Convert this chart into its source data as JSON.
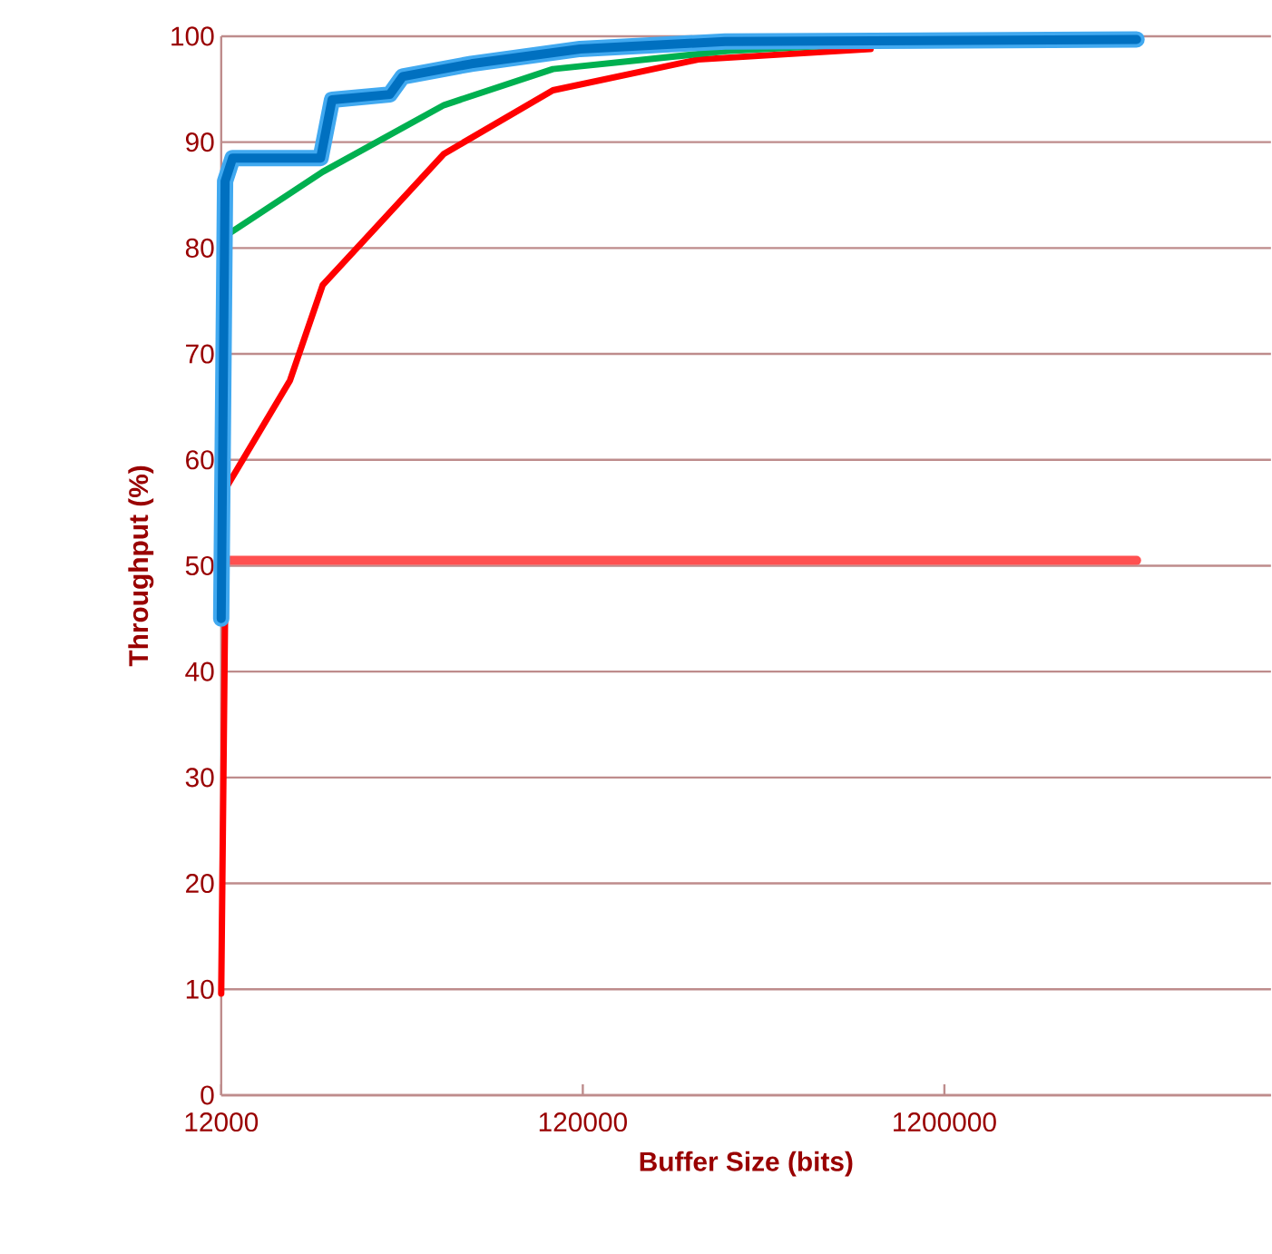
{
  "chart_data": {
    "type": "line",
    "xlabel": "Buffer Size (bits)",
    "ylabel": "Throughput (%)",
    "log": "x",
    "grid": "y",
    "marker": "none",
    "line_style": "solid",
    "xlim": [
      12000,
      9600000
    ],
    "xticks": [
      12000,
      120000,
      1200000
    ],
    "ylim": [
      0,
      100
    ],
    "yticks": [
      0,
      10,
      20,
      30,
      40,
      50,
      60,
      70,
      80,
      90,
      100
    ],
    "series": [
      {
        "color": "#ff5050",
        "x": [
          12400,
          4080000
        ],
        "values": [
          50.5,
          50.5
        ]
      },
      {
        "color": "#ff0000",
        "x": [
          12000,
          12400,
          18600,
          22900,
          49600,
          99200,
          250000,
          750000
        ],
        "values": [
          9.6,
          57.4,
          67.5,
          76.5,
          88.9,
          94.9,
          97.8,
          98.8
        ]
      },
      {
        "color": "#00b050",
        "x": [
          12400,
          22900,
          49600,
          99200,
          300000,
          940000,
          4080000
        ],
        "values": [
          81.2,
          87.2,
          93.5,
          96.9,
          98.6,
          99.5,
          99.5
        ]
      },
      {
        "color": "#41a9f0",
        "x": [
          12000,
          12300,
          12900,
          22600,
          24300,
          35100,
          38100,
          59000,
          118000,
          297000,
          4080000
        ],
        "values": [
          45,
          86.3,
          88.5,
          88.5,
          94,
          94.5,
          96.2,
          97.4,
          98.8,
          99.5,
          99.7
        ]
      },
      {
        "color": "#0070c0",
        "x": [
          12000,
          12300,
          12900,
          22600,
          24300,
          35100,
          38100,
          59000,
          118000,
          297000,
          4080000
        ],
        "values": [
          45,
          86.3,
          88.5,
          88.5,
          94,
          94.5,
          96.2,
          97.4,
          98.8,
          99.5,
          99.7
        ]
      }
    ]
  }
}
